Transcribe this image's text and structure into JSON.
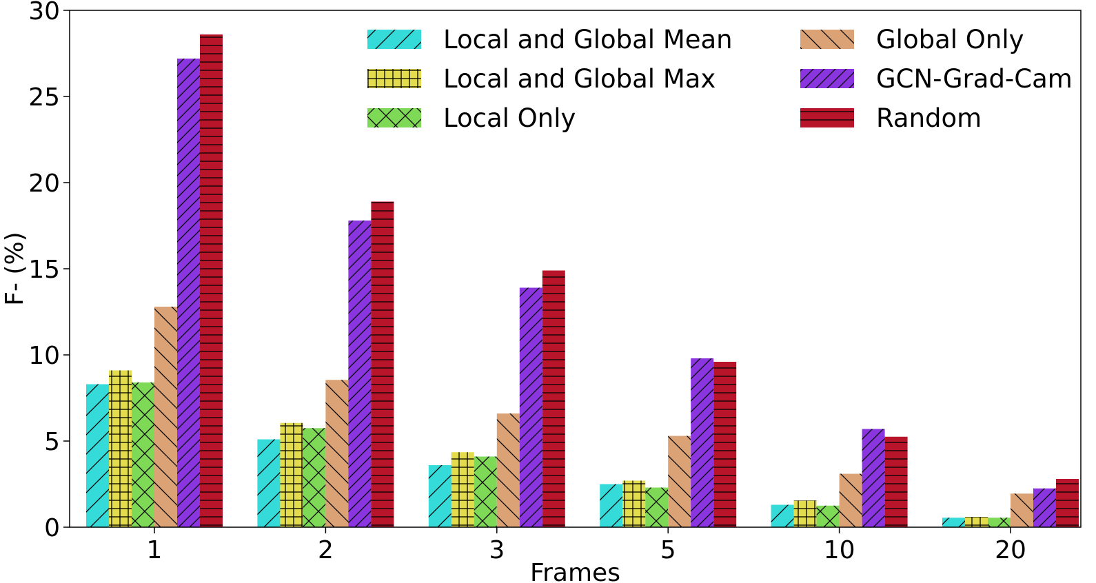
{
  "chart_data": {
    "type": "bar",
    "title": "",
    "xlabel": "Frames",
    "ylabel": "F- (%)",
    "ylim": [
      0,
      30
    ],
    "yticks": [
      0,
      5,
      10,
      15,
      20,
      25,
      30
    ],
    "grid": false,
    "legend_position": "top-right",
    "legend_columns": 2,
    "categories": [
      "1",
      "2",
      "3",
      "5",
      "10",
      "20"
    ],
    "series": [
      {
        "name": "Local and Global Mean",
        "color": "#34dbd8",
        "hatch": "diagonal-forward",
        "values": [
          8.3,
          5.1,
          3.6,
          2.5,
          1.3,
          0.55
        ]
      },
      {
        "name": "Local and Global Max",
        "color": "#e3dd4e",
        "hatch": "grid",
        "values": [
          9.1,
          6.05,
          4.35,
          2.7,
          1.55,
          0.6
        ]
      },
      {
        "name": "Local Only",
        "color": "#7ed957",
        "hatch": "cross-diagonal",
        "values": [
          8.4,
          5.75,
          4.1,
          2.3,
          1.25,
          0.55
        ]
      },
      {
        "name": "Global Only",
        "color": "#dba375",
        "hatch": "diagonal-back",
        "values": [
          12.8,
          8.55,
          6.6,
          5.3,
          3.1,
          1.95
        ]
      },
      {
        "name": "GCN-Grad-Cam",
        "color": "#8a35e0",
        "hatch": "diagonal-forward-dense",
        "values": [
          27.2,
          17.8,
          13.9,
          9.8,
          5.7,
          2.25
        ]
      },
      {
        "name": "Random",
        "color": "#b8152a",
        "hatch": "horizontal",
        "values": [
          28.6,
          18.9,
          14.9,
          9.6,
          5.25,
          2.8
        ]
      }
    ]
  }
}
